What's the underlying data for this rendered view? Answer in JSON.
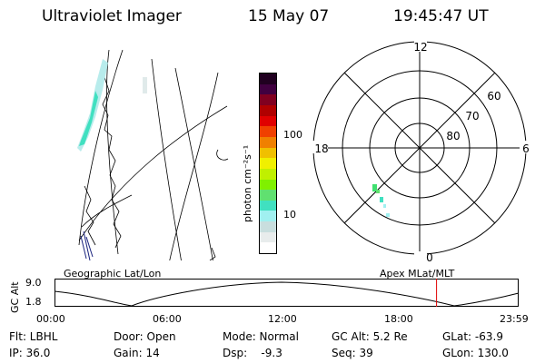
{
  "header": {
    "title": "Ultraviolet Imager",
    "date": "15 May 07",
    "time": "19:45:47 UT"
  },
  "colorbar": {
    "label": "photon cm⁻²s⁻¹",
    "ticks": [
      "100",
      "10"
    ],
    "colors": [
      "#ffffff",
      "#e8ecec",
      "#c8dede",
      "#a0f0f0",
      "#40e0c0",
      "#60e070",
      "#80f000",
      "#c0f000",
      "#f0f000",
      "#f0c000",
      "#f08000",
      "#f04000",
      "#e00000",
      "#b00000",
      "#800020",
      "#400040",
      "#200020"
    ]
  },
  "polar_plot": {
    "labels": {
      "top": "12",
      "bottom": "0",
      "left": "18",
      "right": "6",
      "lat_60": "60",
      "lat_70": "70",
      "lat_80": "80"
    }
  },
  "timeline": {
    "left_title": "Geographic Lat/Lon",
    "right_title": "Apex MLat/MLT",
    "y_label": "GC Alt",
    "y_ticks": [
      "9.0",
      "1.8"
    ],
    "x_ticks": [
      "00:00",
      "06:00",
      "12:00",
      "18:00",
      "23:59"
    ],
    "marker_color": "#e00000",
    "current_time_fraction": 0.823
  },
  "footer": {
    "row1": [
      "Flt: LBHL",
      "Door: Open",
      "Mode: Normal",
      "GC Alt: 5.2 Re",
      "GLat: -63.9"
    ],
    "row2": [
      "IP: 36.0",
      "Gain: 14",
      "Dsp:    -9.3",
      "Seq: 39",
      "GLon: 130.0"
    ]
  }
}
